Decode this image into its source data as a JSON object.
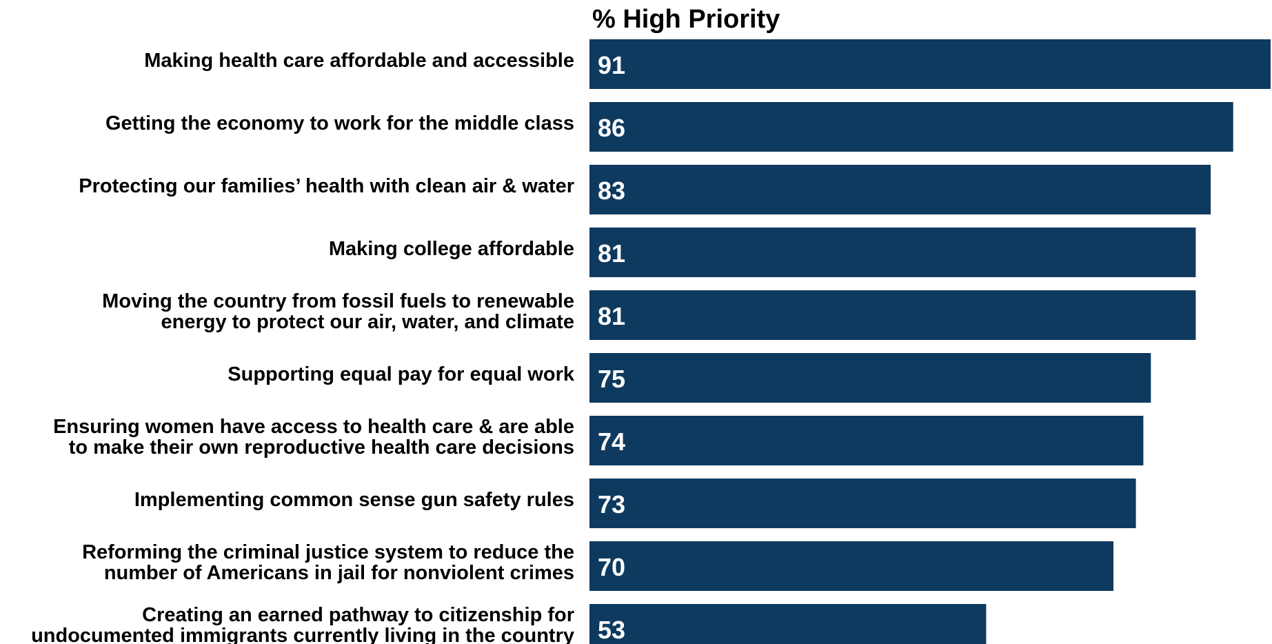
{
  "colors": {
    "bar": "#0f3a5f",
    "value_text": "#ffffff",
    "label_text": "#000000",
    "background": "#ffffff"
  },
  "chart_data": {
    "type": "bar",
    "orientation": "horizontal",
    "header": "% High Priority",
    "categories": [
      [
        "Making health care affordable and accessible"
      ],
      [
        "Getting the economy to work for the middle class"
      ],
      [
        "Protecting our families’ health with clean air & water"
      ],
      [
        "Making college affordable"
      ],
      [
        "Moving the country from fossil fuels to renewable",
        "energy to protect our air, water, and climate"
      ],
      [
        "Supporting equal pay for equal work"
      ],
      [
        "Ensuring women have access to health care & are able",
        "to make their own reproductive health care decisions"
      ],
      [
        "Implementing common sense gun safety rules"
      ],
      [
        "Reforming the criminal justice system to reduce the",
        "number of Americans in jail for nonviolent crimes"
      ],
      [
        "Creating an earned pathway to citizenship for",
        "undocumented immigrants currently living in the country"
      ]
    ],
    "values": [
      91,
      86,
      83,
      81,
      81,
      75,
      74,
      73,
      70,
      53
    ],
    "value_labels": [
      "91",
      "86",
      "83",
      "81",
      "81",
      "75",
      "74",
      "73",
      "70",
      "53"
    ],
    "xlim": [
      0,
      91
    ],
    "grid": false,
    "legend": "none",
    "axes_visible": false
  }
}
